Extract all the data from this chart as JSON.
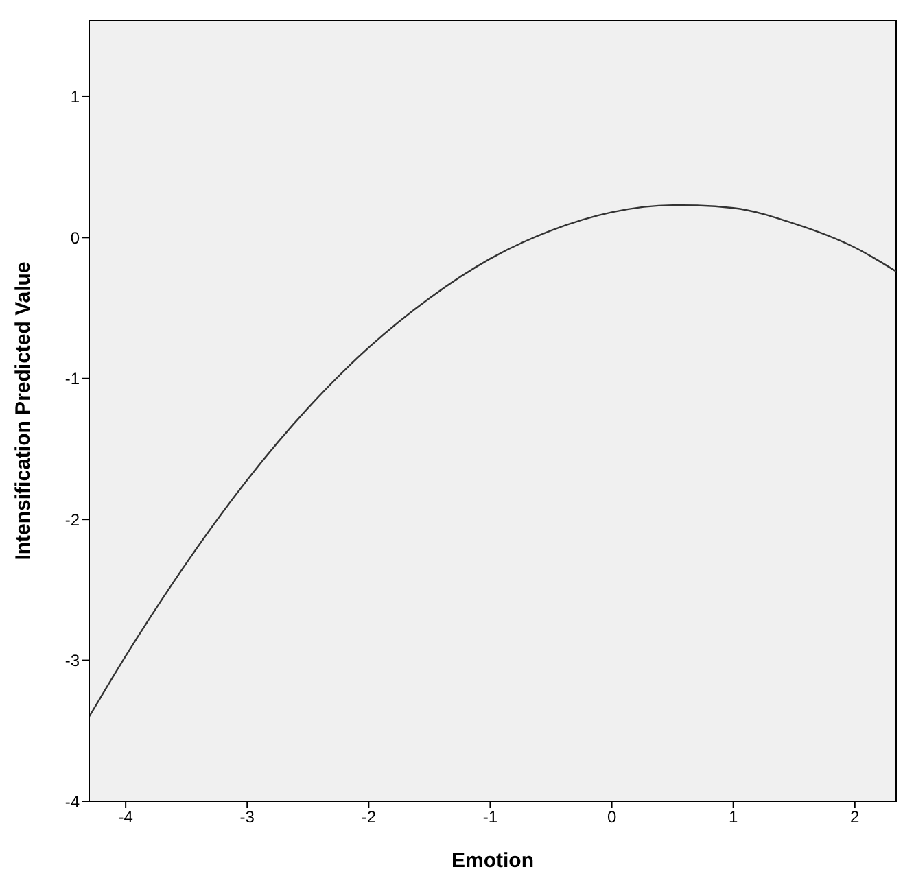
{
  "chart_data": {
    "type": "line",
    "xlabel": "Emotion",
    "ylabel": "Intensification Predicted Value",
    "xlim": [
      -4.3,
      2.34
    ],
    "xticks": [
      -4,
      -3,
      -2,
      -1,
      0,
      1,
      2
    ],
    "ylim": [
      -4,
      1.54
    ],
    "yticks": [
      -4,
      -3,
      -2,
      -1,
      0,
      1
    ],
    "x": [
      -4.3,
      -4,
      -3.5,
      -3,
      -2.5,
      -2,
      -1.5,
      -1,
      -0.5,
      0,
      0.5,
      0.58,
      1,
      1.5,
      2,
      2.34
    ],
    "series": [
      {
        "color": "#333333",
        "values": [
          -3.4,
          -2.97,
          -2.31,
          -1.72,
          -1.21,
          -0.78,
          -0.43,
          -0.15,
          0.05,
          0.18,
          0.23,
          0.23,
          0.21,
          0.1,
          -0.07,
          -0.24
        ]
      }
    ],
    "marker": "none",
    "line_style": "solid",
    "grid": false,
    "legend": false
  }
}
